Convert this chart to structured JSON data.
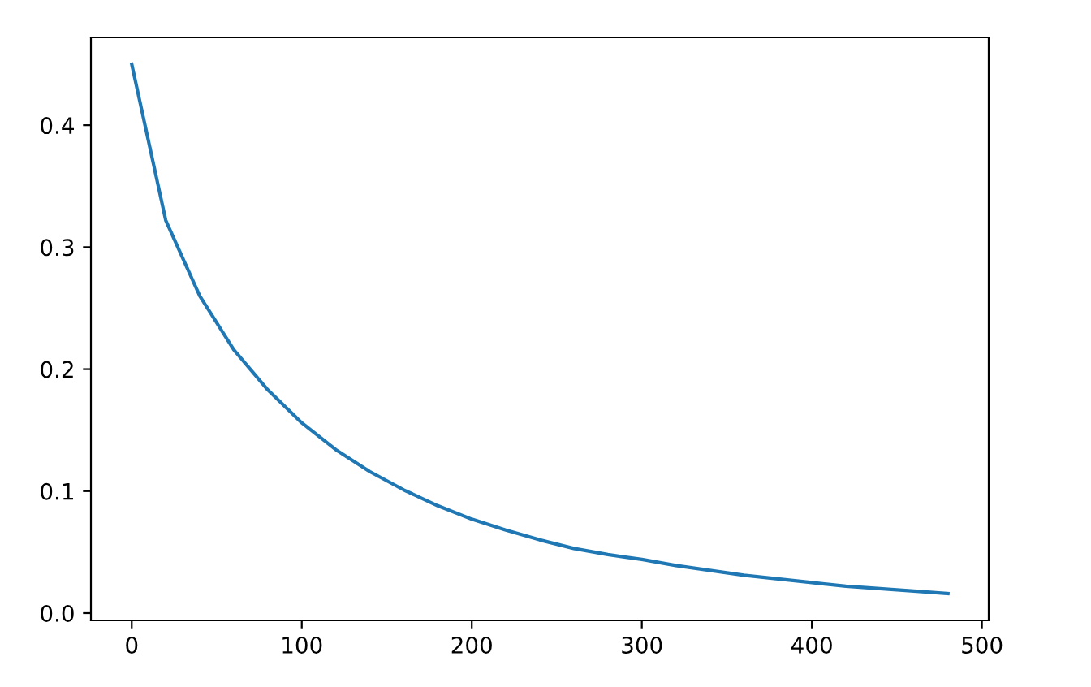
{
  "chart_data": {
    "type": "line",
    "x": [
      0,
      20,
      40,
      60,
      80,
      100,
      120,
      140,
      160,
      180,
      200,
      220,
      240,
      260,
      280,
      300,
      320,
      340,
      360,
      380,
      400,
      420,
      440,
      460,
      480
    ],
    "series": [
      {
        "color": "#1f77b4",
        "values": [
          0.45,
          0.322,
          0.26,
          0.216,
          0.183,
          0.156,
          0.134,
          0.116,
          0.101,
          0.088,
          0.077,
          0.068,
          0.06,
          0.053,
          0.048,
          0.044,
          0.039,
          0.035,
          0.031,
          0.028,
          0.025,
          0.022,
          0.02,
          0.018,
          0.016
        ]
      }
    ],
    "xlim": [
      -24,
      504
    ],
    "ylim": [
      -0.006,
      0.472
    ],
    "xticks": [
      0,
      100,
      200,
      300,
      400,
      500
    ],
    "yticks": [
      {
        "value": 0,
        "label": "0.0"
      },
      0.1,
      0.2,
      0.3,
      0.4
    ],
    "grid": false,
    "marker": "none",
    "line_style": "solid"
  }
}
